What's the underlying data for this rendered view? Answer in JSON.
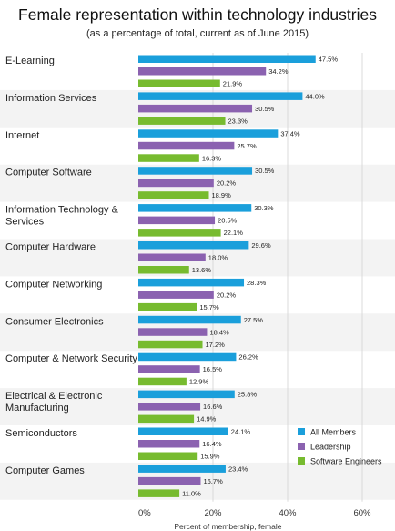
{
  "chart_data": {
    "type": "bar",
    "orientation": "horizontal",
    "title": "Female representation within technology industries",
    "subtitle": "(as a percentage of total, current as of June 2015)",
    "xlabel": "Percent of membership, female",
    "xlim": [
      0,
      60
    ],
    "xticks": [
      "0%",
      "20%",
      "40%",
      "60%"
    ],
    "grid": true,
    "legend_position": "right",
    "categories": [
      "E-Learning",
      "Information Services",
      "Internet",
      "Computer Software",
      "Information Technology & Services",
      "Computer Hardware",
      "Computer Networking",
      "Consumer Electronics",
      "Computer & Network Security",
      "Electrical & Electronic Manufacturing",
      "Semiconductors",
      "Computer Games"
    ],
    "category_lines": [
      [
        "E-Learning"
      ],
      [
        "Information Services"
      ],
      [
        "Internet"
      ],
      [
        "Computer Software"
      ],
      [
        "Information Technology &",
        "Services"
      ],
      [
        "Computer Hardware"
      ],
      [
        "Computer Networking"
      ],
      [
        "Consumer Electronics"
      ],
      [
        "Computer & Network Security"
      ],
      [
        "Electrical & Electronic",
        "Manufacturing"
      ],
      [
        "Semiconductors"
      ],
      [
        "Computer Games"
      ]
    ],
    "series": [
      {
        "name": "All Members",
        "color": "#1a9fdb",
        "values": [
          47.5,
          44.0,
          37.4,
          30.5,
          30.3,
          29.6,
          28.3,
          27.5,
          26.2,
          25.8,
          24.1,
          23.4
        ],
        "labels": [
          "47.5%",
          "44.0%",
          "37.4%",
          "30.5%",
          "30.3%",
          "29.6%",
          "28.3%",
          "27.5%",
          "26.2%",
          "25.8%",
          "24.1%",
          "23.4%"
        ]
      },
      {
        "name": "Leadership",
        "color": "#8b62b0",
        "values": [
          34.2,
          30.5,
          25.7,
          20.2,
          20.5,
          18.0,
          20.2,
          18.4,
          16.5,
          16.6,
          16.4,
          16.7
        ],
        "labels": [
          "34.2%",
          "30.5%",
          "25.7%",
          "20.2%",
          "20.5%",
          "18.0%",
          "20.2%",
          "18.4%",
          "16.5%",
          "16.6%",
          "16.4%",
          "16.7%"
        ]
      },
      {
        "name": "Software Engineers",
        "color": "#77bb2f",
        "values": [
          21.9,
          23.3,
          16.3,
          18.9,
          22.1,
          13.6,
          15.7,
          17.2,
          12.9,
          14.9,
          15.9,
          11.0
        ],
        "labels": [
          "21.9%",
          "23.3%",
          "16.3%",
          "18.9%",
          "22.1%",
          "13.6%",
          "15.7%",
          "17.2%",
          "12.9%",
          "14.9%",
          "15.9%",
          "11.0%"
        ]
      }
    ],
    "colors": {
      "band": "#f3f3f3",
      "grid": "#cccccc"
    }
  }
}
